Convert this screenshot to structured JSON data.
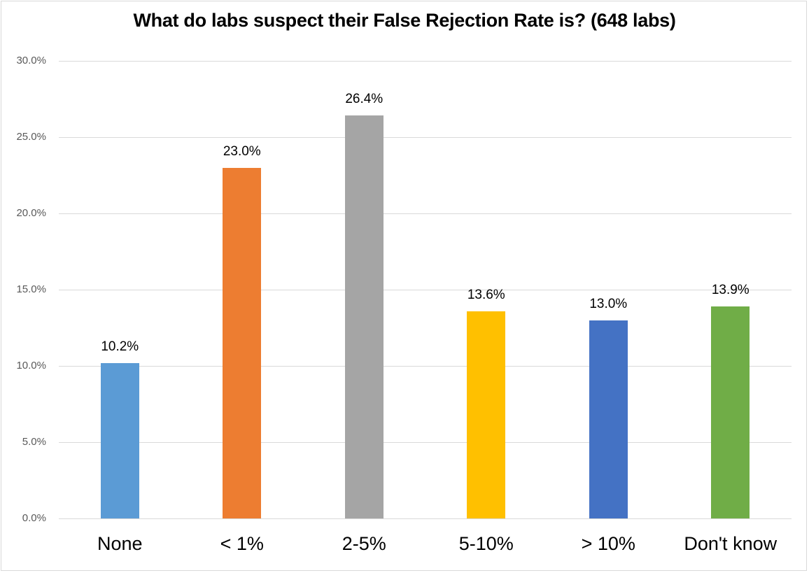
{
  "chart_data": {
    "type": "bar",
    "title": "What do labs suspect their False Rejection Rate is? (648 labs)",
    "xlabel": "",
    "ylabel": "",
    "categories": [
      "None",
      "< 1%",
      "2-5%",
      "5-10%",
      "> 10%",
      "Don't know"
    ],
    "values": [
      10.2,
      23.0,
      26.4,
      13.6,
      13.0,
      13.9
    ],
    "value_labels": [
      "10.2%",
      "23.0%",
      "26.4%",
      "13.6%",
      "13.0%",
      "13.9%"
    ],
    "colors": [
      "#5b9bd5",
      "#ed7d31",
      "#a5a5a5",
      "#ffc000",
      "#4472c4",
      "#70ad47"
    ],
    "ylim": [
      0,
      30
    ],
    "yticks": [
      "0.0%",
      "5.0%",
      "10.0%",
      "15.0%",
      "20.0%",
      "25.0%",
      "30.0%"
    ],
    "grid": true,
    "legend": "none"
  }
}
